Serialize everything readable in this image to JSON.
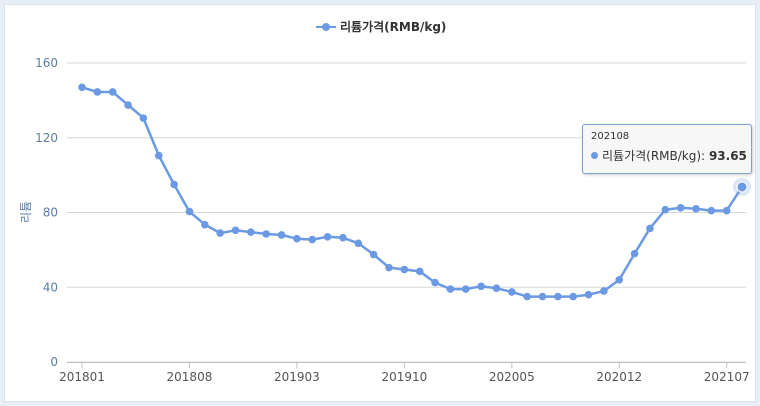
{
  "chart_data": {
    "type": "line",
    "legend": "리튬가격(RMB/kg)",
    "ylabel": "리튬",
    "ylim": [
      0,
      160
    ],
    "yticks": [
      0,
      40,
      80,
      120,
      160
    ],
    "x": [
      "201801",
      "201802",
      "201803",
      "201804",
      "201805",
      "201806",
      "201807",
      "201808",
      "201809",
      "201810",
      "201811",
      "201812",
      "201901",
      "201902",
      "201903",
      "201904",
      "201905",
      "201906",
      "201907",
      "201908",
      "201909",
      "201910",
      "201911",
      "201912",
      "202001",
      "202002",
      "202003",
      "202004",
      "202005",
      "202006",
      "202007",
      "202008",
      "202009",
      "202010",
      "202011",
      "202012",
      "202101",
      "202102",
      "202103",
      "202104",
      "202105",
      "202106",
      "202107",
      "202108"
    ],
    "xtick_labels": [
      "201801",
      "201808",
      "201903",
      "201910",
      "202005",
      "202012",
      "202107"
    ],
    "series": [
      {
        "name": "리튬가격(RMB/kg)",
        "color": "#6b9ae3",
        "values": [
          147,
          144.5,
          144.5,
          137.5,
          130.5,
          110.5,
          95,
          80.5,
          73.5,
          69,
          70.5,
          69.5,
          68.5,
          68,
          66,
          65.5,
          67,
          66.5,
          63.5,
          57.5,
          50.5,
          49.5,
          48.5,
          42.5,
          39,
          39,
          40.5,
          39.5,
          37.5,
          35,
          35,
          35,
          35,
          36,
          38,
          44,
          58,
          71.5,
          81.5,
          82.5,
          82,
          81,
          81,
          93.65
        ]
      }
    ],
    "tooltip": {
      "date": "202108",
      "label": "리튬가격(RMB/kg):",
      "value": "93.65"
    },
    "grid": true
  }
}
